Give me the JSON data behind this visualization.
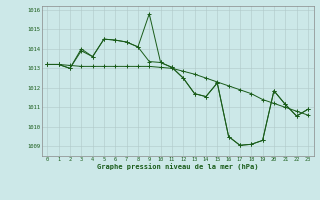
{
  "title": "Graphe pression niveau de la mer (hPa)",
  "bg_color": "#cce8e8",
  "line_color": "#1a5c1a",
  "grid_color": "#b0c8c8",
  "xlim": [
    -0.5,
    23.5
  ],
  "ylim": [
    1008.5,
    1016.2
  ],
  "xticks": [
    0,
    1,
    2,
    3,
    4,
    5,
    6,
    7,
    8,
    9,
    10,
    11,
    12,
    13,
    14,
    15,
    16,
    17,
    18,
    19,
    20,
    21,
    22,
    23
  ],
  "yticks": [
    1009,
    1010,
    1011,
    1012,
    1013,
    1014,
    1015,
    1016
  ],
  "series1_x": [
    0,
    1,
    2,
    3,
    4,
    5,
    6,
    7,
    8,
    9,
    10,
    11,
    12,
    13,
    14,
    15,
    16,
    17,
    18,
    19,
    20,
    21,
    22,
    23
  ],
  "series1_y": [
    1013.2,
    1013.2,
    1013.15,
    1013.1,
    1013.1,
    1013.1,
    1013.1,
    1013.1,
    1013.1,
    1013.1,
    1013.05,
    1013.0,
    1012.85,
    1012.7,
    1012.5,
    1012.3,
    1012.1,
    1011.9,
    1011.7,
    1011.4,
    1011.2,
    1011.0,
    1010.8,
    1010.6
  ],
  "series2_x": [
    0,
    1,
    2,
    3,
    4,
    5,
    6,
    7,
    8,
    9,
    10,
    11,
    12,
    13,
    14,
    15,
    16,
    17,
    18,
    19,
    20,
    21,
    22,
    23
  ],
  "series2_y": [
    1013.2,
    1013.2,
    1013.0,
    1014.0,
    1013.6,
    1014.5,
    1014.45,
    1014.35,
    1014.1,
    1013.35,
    1013.3,
    1013.05,
    1012.5,
    1011.7,
    1011.55,
    1012.25,
    1009.5,
    1009.05,
    1009.1,
    1009.3,
    1011.85,
    1011.15,
    1010.55,
    1010.9
  ],
  "series3_x": [
    0,
    1,
    2,
    3,
    4,
    5,
    6,
    7,
    8,
    9,
    10,
    11,
    12,
    13,
    14,
    15,
    16,
    17,
    18,
    19,
    20,
    21,
    22,
    23
  ],
  "series3_y": [
    1013.2,
    1013.2,
    1013.0,
    1013.9,
    1013.6,
    1014.5,
    1014.45,
    1014.35,
    1014.1,
    1015.8,
    1013.3,
    1013.05,
    1012.5,
    1011.7,
    1011.55,
    1012.25,
    1009.5,
    1009.05,
    1009.1,
    1009.3,
    1011.85,
    1011.15,
    1010.55,
    1010.9
  ]
}
